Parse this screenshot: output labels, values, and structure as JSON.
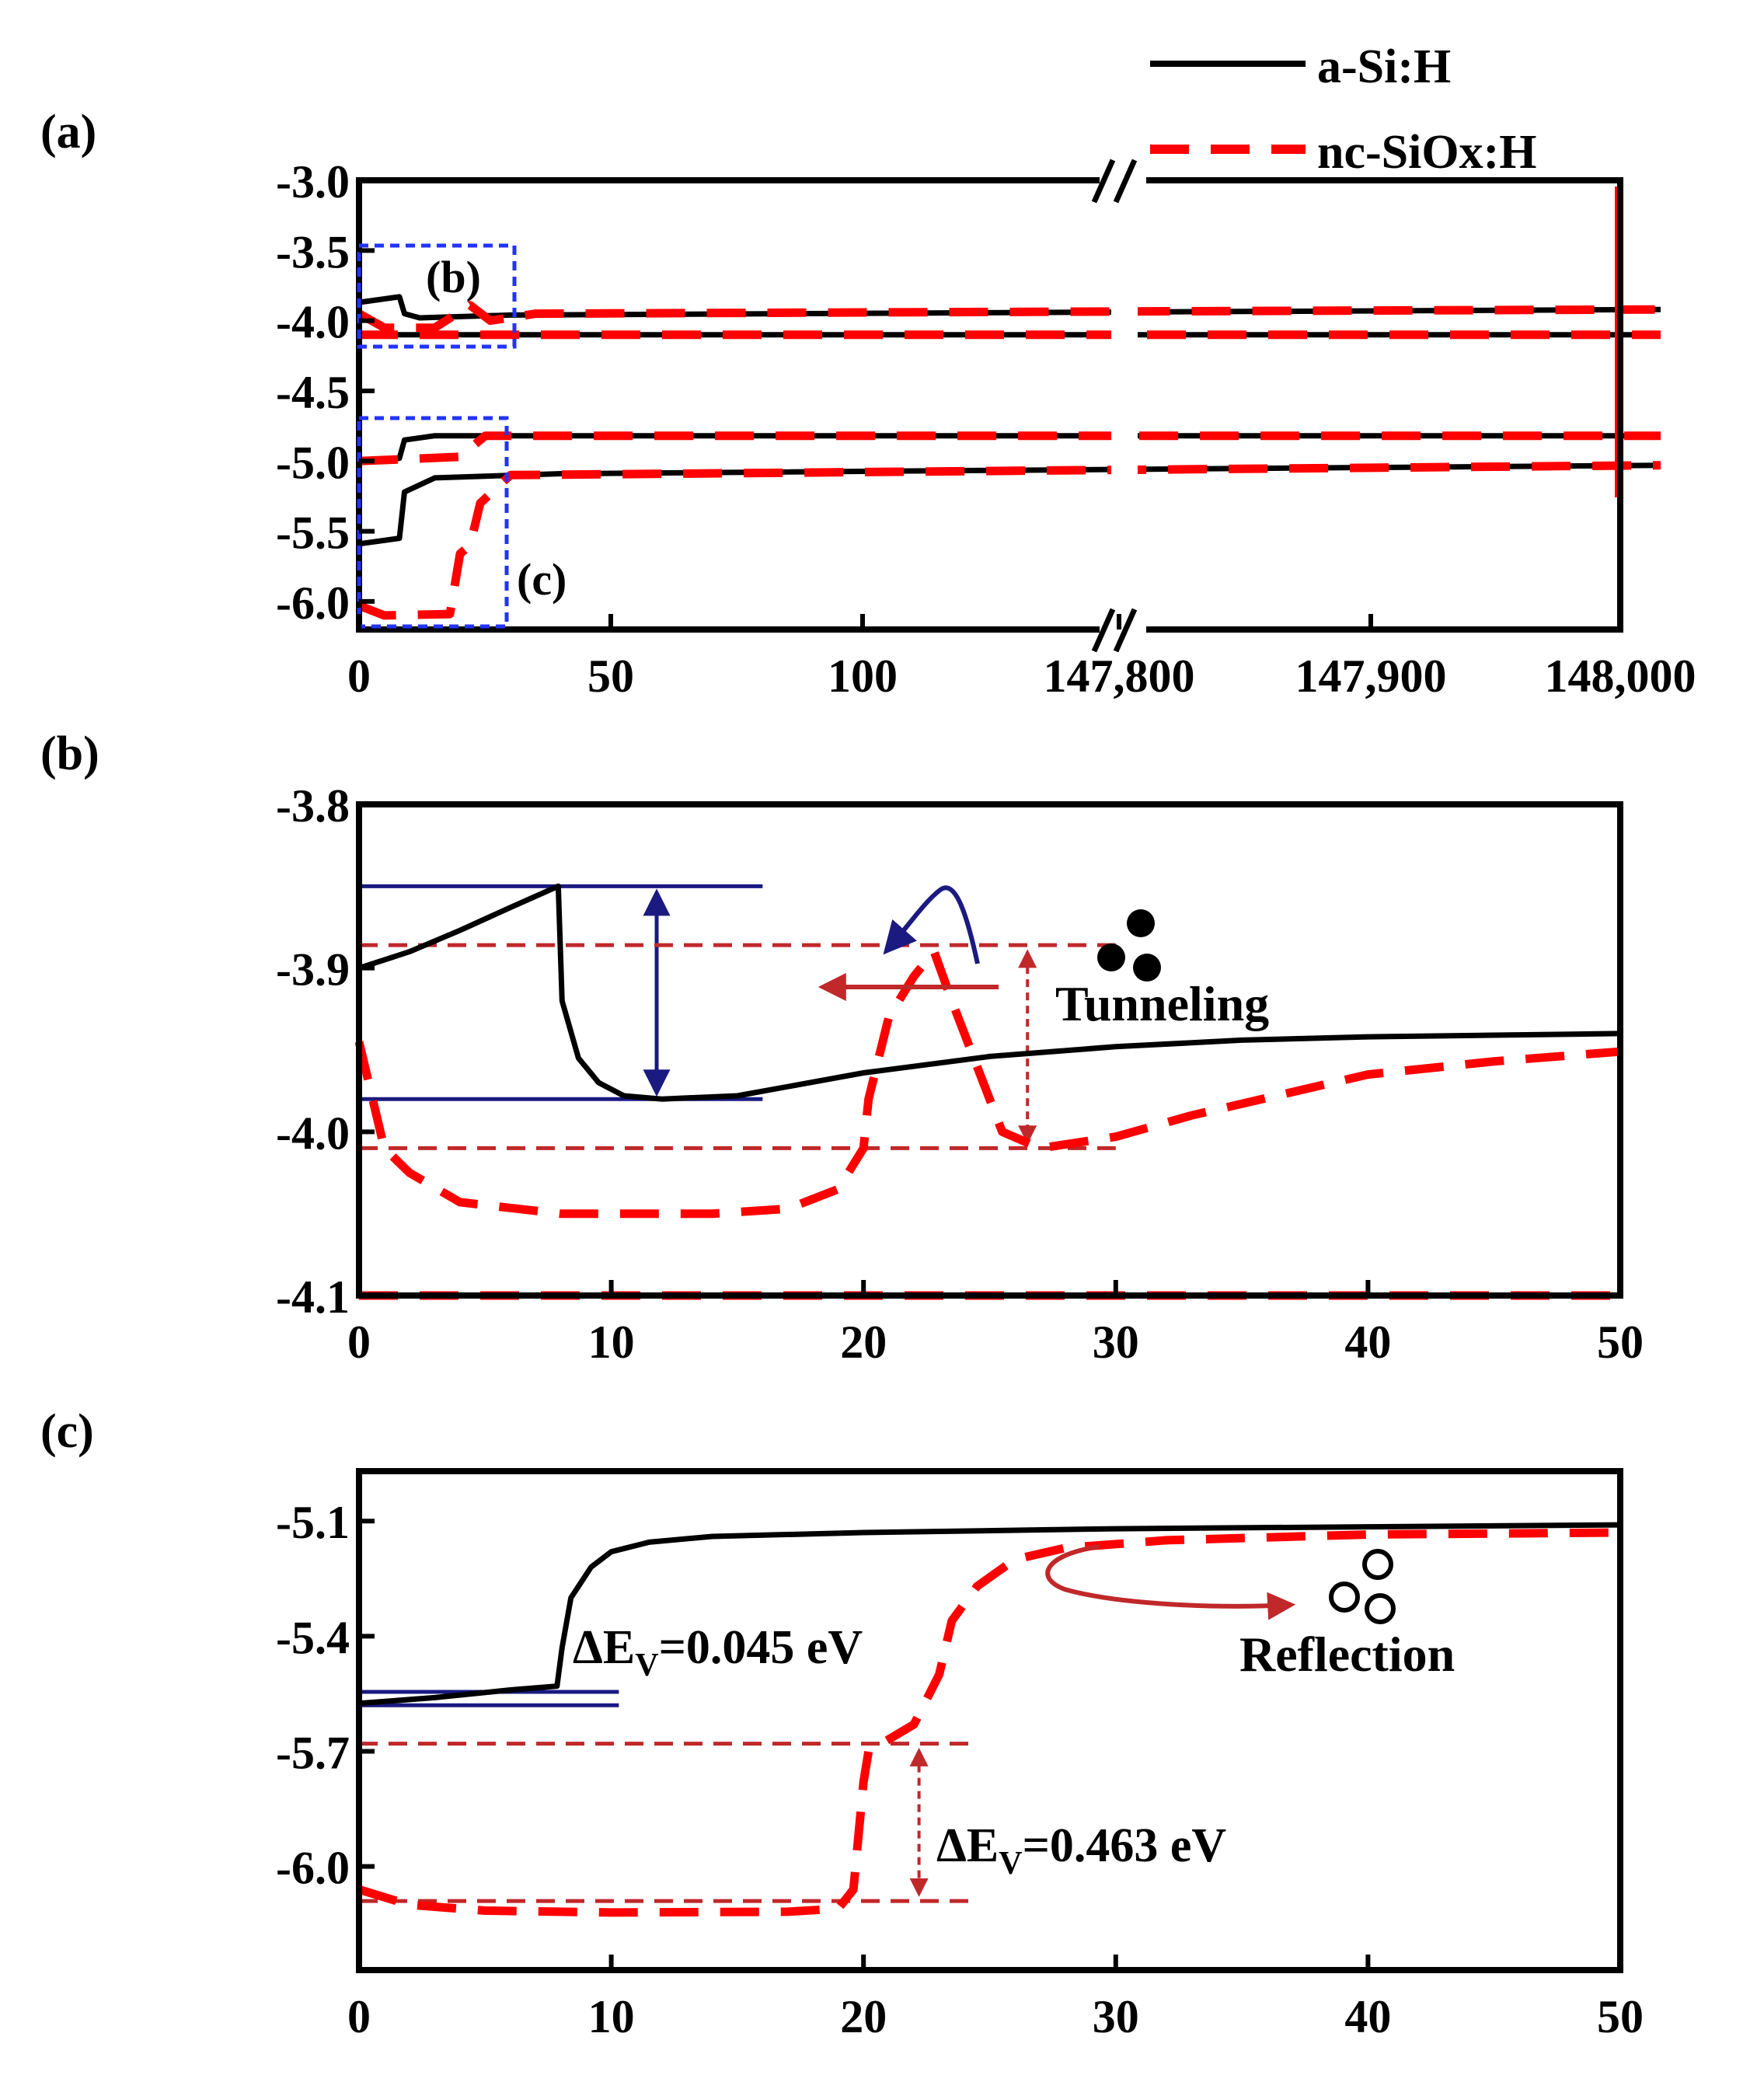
{
  "colors": {
    "black": "#000000",
    "red": "#ff0000",
    "navy": "#1a1a80",
    "darkred": "#c0282a",
    "blue": "#2233ff"
  },
  "legend": {
    "items": [
      {
        "label": "a-Si:H",
        "style": "solid",
        "color": "#000000"
      },
      {
        "label": "nc-SiOx:H",
        "style": "dashed",
        "color": "#ff0000"
      }
    ]
  },
  "chart_data": [
    {
      "id": "a",
      "panel_label": "(a)",
      "type": "line",
      "ylim": [
        -6.2,
        -3.0
      ],
      "yticks": [
        "-3.0",
        "-3.5",
        "-4.0",
        "-4.5",
        "-5.0",
        "-5.5",
        "-6.0"
      ],
      "xticks": [
        "0",
        "50",
        "100",
        "147,800",
        "147,900",
        "148,000"
      ],
      "axis_break": "between 100 and 147,800",
      "inset_labels": [
        "(b)",
        "(c)"
      ],
      "series": [
        {
          "name": "a-Si:H",
          "points": [
            [
              0,
              -3.87
            ],
            [
              4,
              -3.85
            ],
            [
              8,
              -3.83
            ],
            [
              9,
              -3.95
            ],
            [
              12,
              -3.98
            ],
            [
              30,
              -3.96
            ],
            [
              148000,
              -3.92
            ]
          ]
        },
        {
          "name": "a-Si:H",
          "points": [
            [
              0,
              -4.1
            ],
            [
              148000,
              -4.1
            ]
          ]
        },
        {
          "name": "a-Si:H",
          "points": [
            [
              0,
              -5.0
            ],
            [
              6,
              -4.99
            ],
            [
              8,
              -4.98
            ],
            [
              9,
              -4.85
            ],
            [
              15,
              -4.82
            ],
            [
              148000,
              -4.82
            ]
          ]
        },
        {
          "name": "a-Si:H",
          "points": [
            [
              0,
              -5.59
            ],
            [
              8,
              -5.55
            ],
            [
              9,
              -5.22
            ],
            [
              15,
              -5.12
            ],
            [
              40,
              -5.09
            ],
            [
              148000,
              -5.03
            ]
          ]
        },
        {
          "name": "nc-SiOx:H",
          "points": [
            [
              0,
              -3.95
            ],
            [
              5,
              -4.05
            ],
            [
              15,
              -4.05
            ],
            [
              22,
              -3.89
            ],
            [
              26,
              -4.0
            ],
            [
              35,
              -3.95
            ],
            [
              148000,
              -3.92
            ]
          ]
        },
        {
          "name": "nc-SiOx:H",
          "points": [
            [
              0,
              -4.1
            ],
            [
              148000,
              -4.1
            ]
          ]
        },
        {
          "name": "nc-SiOx:H",
          "points": [
            [
              0,
              -5.0
            ],
            [
              20,
              -4.97
            ],
            [
              25,
              -4.82
            ],
            [
              148000,
              -4.82
            ]
          ]
        },
        {
          "name": "nc-SiOx:H",
          "points": [
            [
              0,
              -6.03
            ],
            [
              5,
              -6.1
            ],
            [
              18,
              -6.09
            ],
            [
              20,
              -5.66
            ],
            [
              22,
              -5.6
            ],
            [
              24,
              -5.3
            ],
            [
              30,
              -5.1
            ],
            [
              148000,
              -5.03
            ]
          ]
        }
      ]
    },
    {
      "id": "b",
      "panel_label": "(b)",
      "type": "line",
      "xlim": [
        0,
        50
      ],
      "ylim": [
        -4.1,
        -3.8
      ],
      "xticks": [
        "0",
        "10",
        "20",
        "30",
        "40",
        "50"
      ],
      "yticks": [
        "-3.8",
        "-3.9",
        "-4.0",
        "-4.1"
      ],
      "annotation": "Tunneling",
      "series": [
        {
          "name": "a-Si:H",
          "points": [
            [
              0,
              -3.9
            ],
            [
              2,
              -3.89
            ],
            [
              4,
              -3.877
            ],
            [
              6,
              -3.863
            ],
            [
              7.9,
              -3.85
            ],
            [
              8.05,
              -3.92
            ],
            [
              8.7,
              -3.955
            ],
            [
              9.5,
              -3.97
            ],
            [
              10.5,
              -3.978
            ],
            [
              12,
              -3.98
            ],
            [
              15,
              -3.978
            ],
            [
              20,
              -3.964
            ],
            [
              25,
              -3.954
            ],
            [
              30,
              -3.948
            ],
            [
              35,
              -3.944
            ],
            [
              40,
              -3.942
            ],
            [
              45,
              -3.941
            ],
            [
              50,
              -3.94
            ]
          ]
        },
        {
          "name": "nc-SiOx:H",
          "points": [
            [
              0,
              -3.945
            ],
            [
              1,
              -4.01
            ],
            [
              2,
              -4.025
            ],
            [
              4,
              -4.043
            ],
            [
              8,
              -4.05
            ],
            [
              14,
              -4.05
            ],
            [
              17,
              -4.047
            ],
            [
              19,
              -4.035
            ],
            [
              20,
              -4.01
            ],
            [
              20.2,
              -3.98
            ],
            [
              21,
              -3.93
            ],
            [
              22,
              -3.905
            ],
            [
              22.8,
              -3.89
            ],
            [
              23.5,
              -3.92
            ],
            [
              25.5,
              -4.0
            ],
            [
              27,
              -4.01
            ],
            [
              30,
              -4.003
            ],
            [
              33,
              -3.99
            ],
            [
              40,
              -3.965
            ],
            [
              45,
              -3.957
            ],
            [
              50,
              -3.951
            ]
          ]
        },
        {
          "name": "nc-SiOx:H",
          "points": [
            [
              0,
              -4.1
            ],
            [
              50,
              -4.1
            ]
          ]
        }
      ],
      "guides": {
        "navy_lines": [
          [
            0,
            -3.85,
            16,
            -3.85
          ],
          [
            0,
            -3.98,
            16,
            -3.98
          ]
        ],
        "navy_arrow": [
          11.8,
          -3.85,
          11.8,
          -3.98
        ],
        "red_dashed_lines": [
          [
            0,
            -3.886,
            30,
            -3.886
          ],
          [
            0,
            -4.01,
            30,
            -4.01
          ]
        ],
        "red_dashed_arrow": [
          26.5,
          -3.886,
          26.5,
          -4.01
        ]
      }
    },
    {
      "id": "c",
      "panel_label": "(c)",
      "type": "line",
      "xlim": [
        0,
        50
      ],
      "ylim": [
        -6.27,
        -4.97
      ],
      "xticks": [
        "0",
        "10",
        "20",
        "30",
        "40",
        "50"
      ],
      "yticks": [
        "-5.1",
        "-5.4",
        "-5.7",
        "-6.0"
      ],
      "annotations": [
        "Reflection",
        "ΔE",
        "V",
        "=0.045 eV",
        "ΔE",
        "V",
        "=0.463 eV"
      ],
      "series": [
        {
          "name": "a-Si:H",
          "points": [
            [
              0,
              -5.575
            ],
            [
              3,
              -5.56
            ],
            [
              6,
              -5.54
            ],
            [
              7.85,
              -5.53
            ],
            [
              8.05,
              -5.43
            ],
            [
              8.4,
              -5.3
            ],
            [
              9.2,
              -5.22
            ],
            [
              10,
              -5.18
            ],
            [
              11.5,
              -5.155
            ],
            [
              14,
              -5.14
            ],
            [
              20,
              -5.13
            ],
            [
              30,
              -5.12
            ],
            [
              40,
              -5.115
            ],
            [
              50,
              -5.11
            ]
          ]
        },
        {
          "name": "nc-SiOx:H",
          "points": [
            [
              0,
              -6.06
            ],
            [
              2,
              -6.1
            ],
            [
              5,
              -6.115
            ],
            [
              10,
              -6.12
            ],
            [
              17,
              -6.118
            ],
            [
              19,
              -6.11
            ],
            [
              19.6,
              -6.06
            ],
            [
              20,
              -5.78
            ],
            [
              20.2,
              -5.7
            ],
            [
              22,
              -5.63
            ],
            [
              23,
              -5.5
            ],
            [
              23.5,
              -5.36
            ],
            [
              24.5,
              -5.27
            ],
            [
              26,
              -5.2
            ],
            [
              28,
              -5.17
            ],
            [
              32,
              -5.15
            ],
            [
              40,
              -5.135
            ],
            [
              50,
              -5.13
            ]
          ]
        }
      ],
      "guides": {
        "navy_lines": [
          [
            0,
            -5.545,
            10.3,
            -5.545
          ],
          [
            0,
            -5.58,
            10.3,
            -5.58
          ]
        ],
        "red_dashed_lines": [
          [
            0,
            -5.68,
            24.5,
            -5.68
          ],
          [
            0,
            -6.09,
            24.5,
            -6.09
          ]
        ],
        "red_dashed_arrow": [
          22.2,
          -5.68,
          22.2,
          -6.09
        ]
      }
    }
  ]
}
